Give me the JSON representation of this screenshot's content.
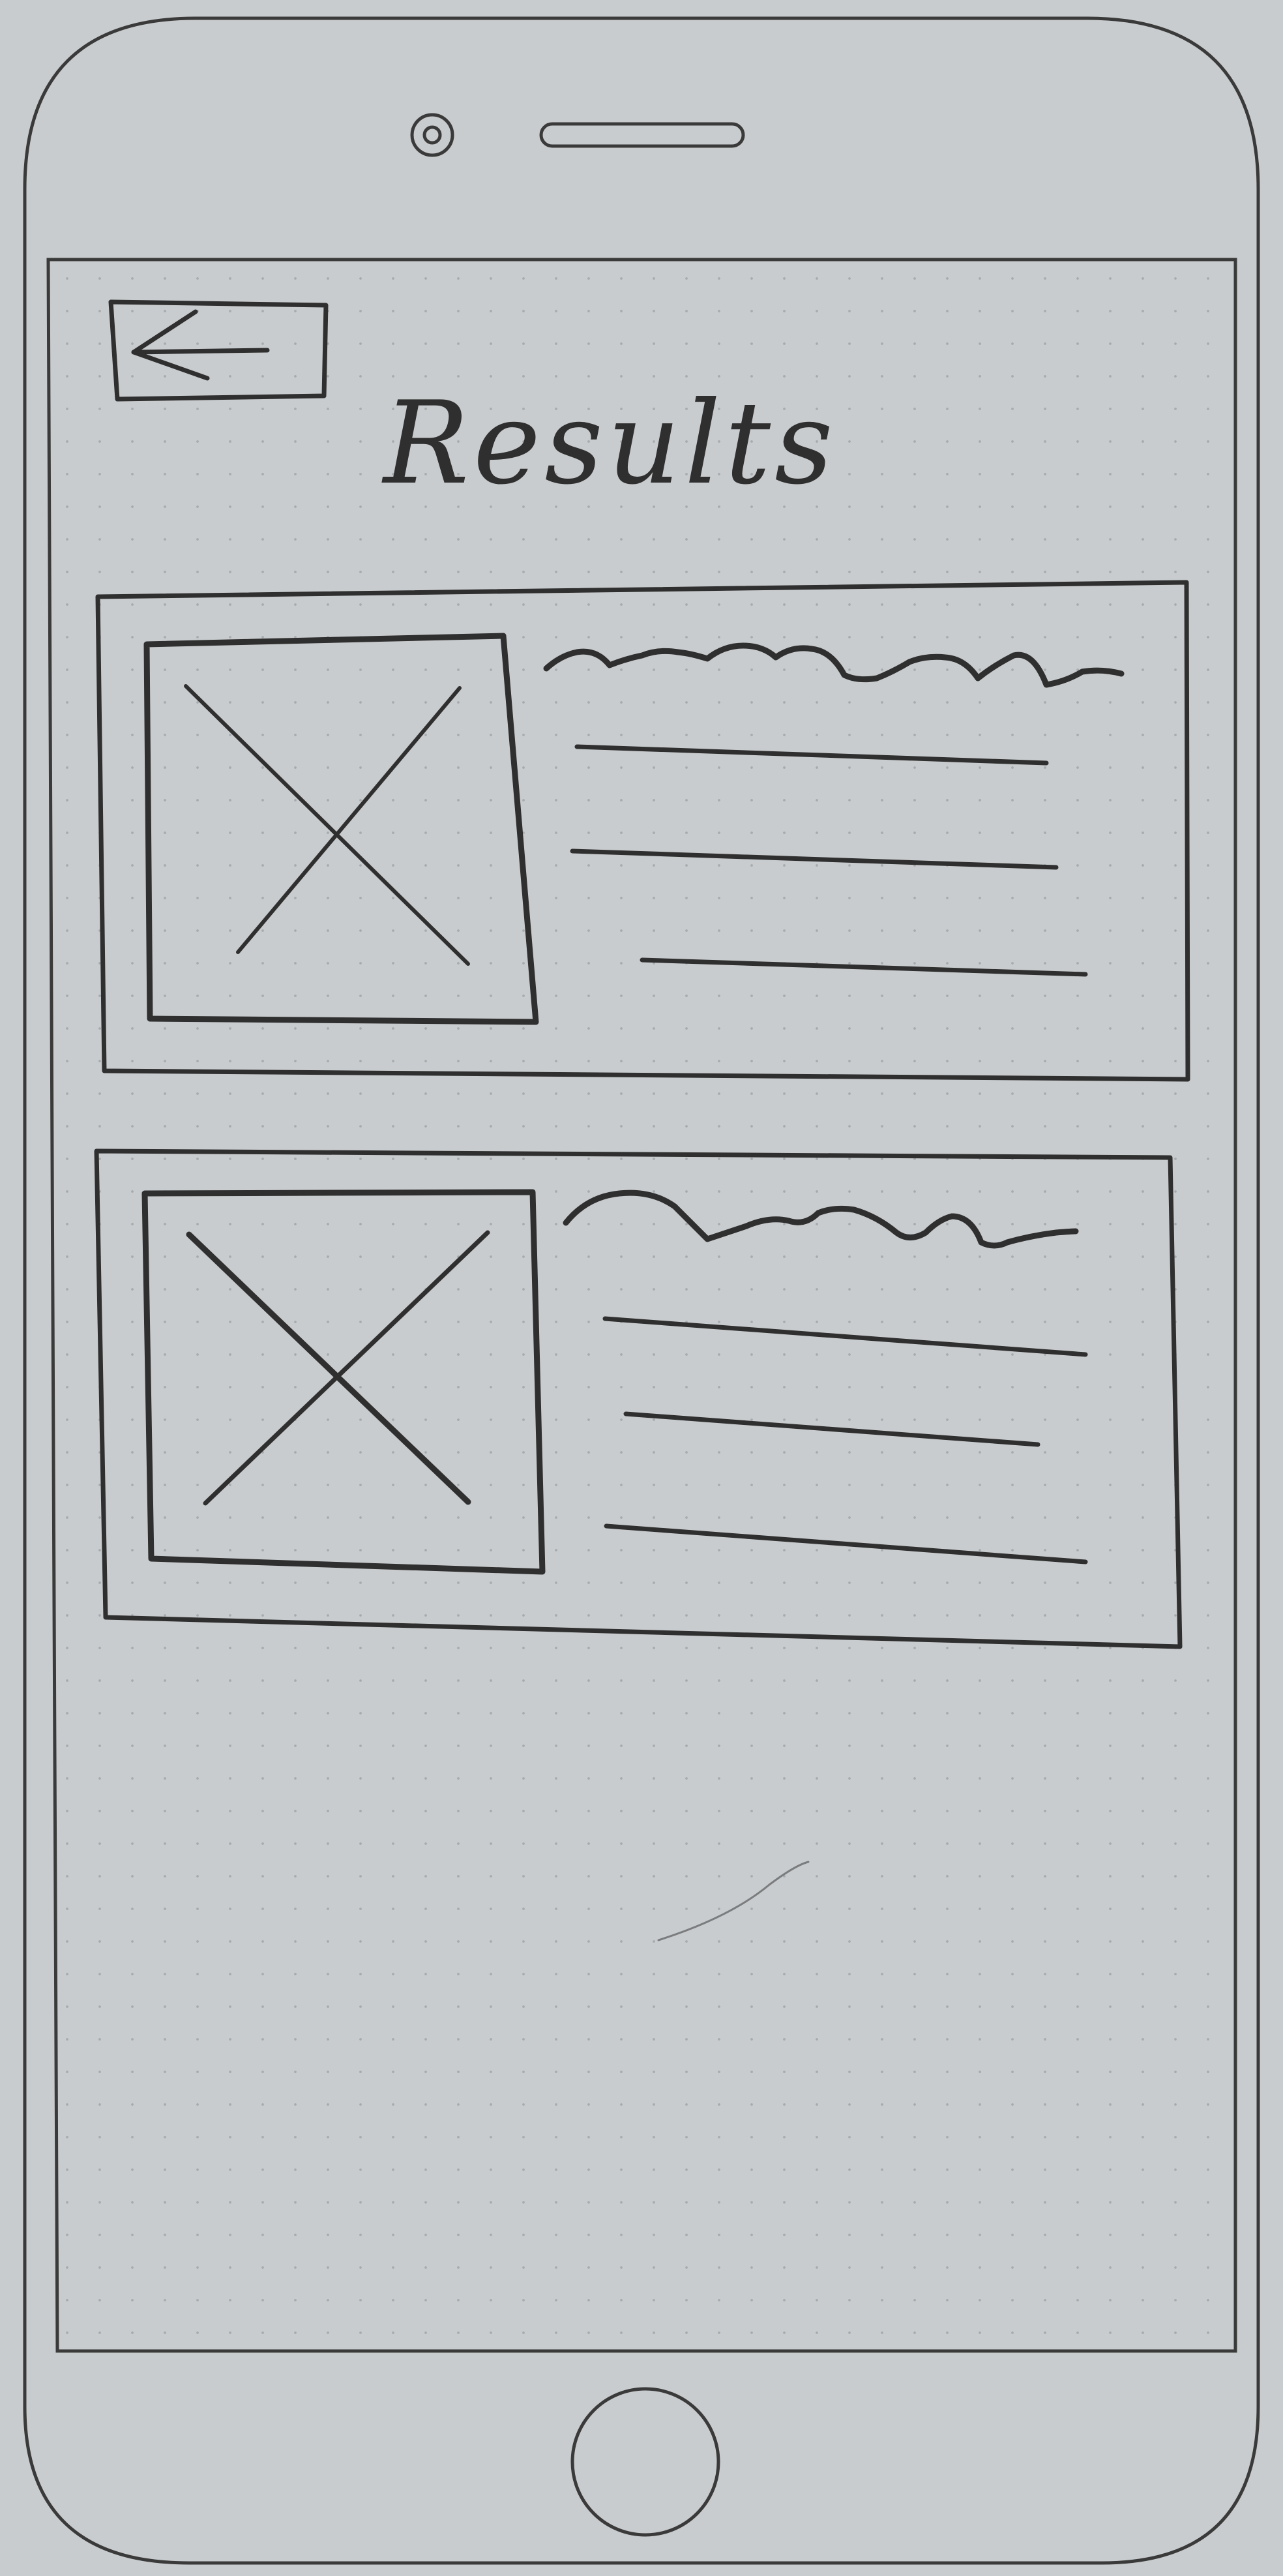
{
  "screen": {
    "title": "Results"
  },
  "header": {
    "back_button": {
      "icon": "arrow-left-icon"
    }
  },
  "results": [
    {
      "thumbnail_icon": "image-placeholder-icon",
      "title_scribble": "wavy-title-line",
      "text_line_count": 3
    },
    {
      "thumbnail_icon": "image-placeholder-icon",
      "title_scribble": "wavy-title-line",
      "text_line_count": 3
    }
  ],
  "device": {
    "home_button_icon": "home-button-icon",
    "camera_icon": "camera-icon",
    "speaker_icon": "speaker-icon"
  },
  "colors": {
    "paper": "#c9ccce",
    "ink": "#2f2f2f",
    "frame": "#3a3a3a"
  }
}
